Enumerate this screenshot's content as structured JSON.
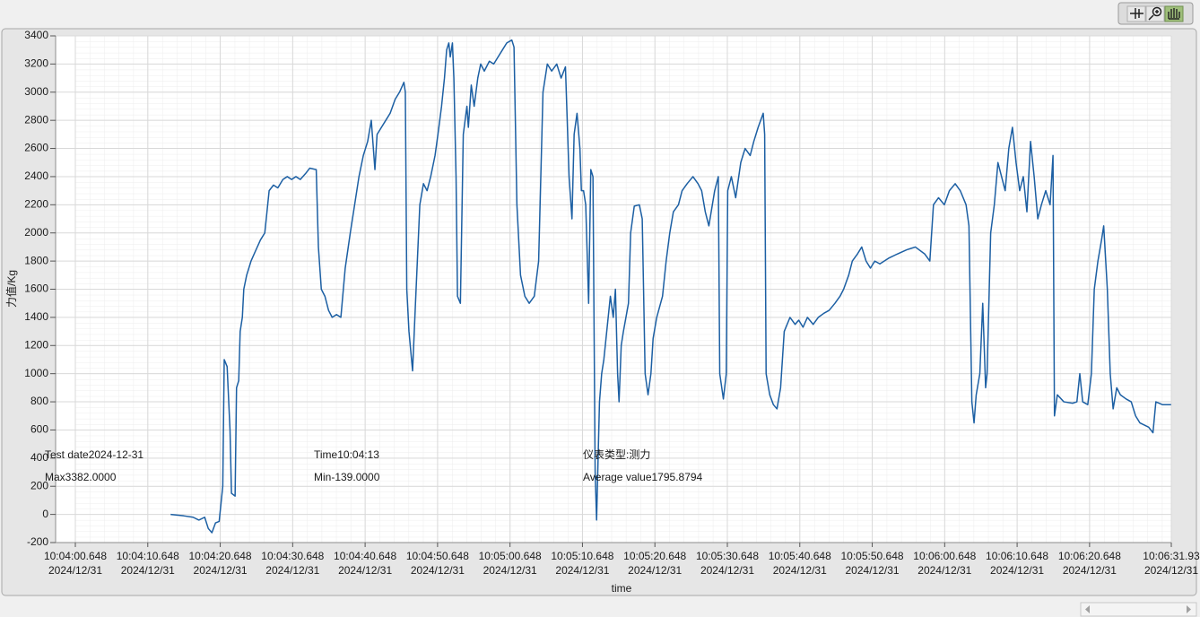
{
  "chart_data": {
    "type": "line",
    "x_label": "time",
    "y_label": "力值/Kg",
    "annotations": [
      "Test date2024-12-31",
      "Time10:04:13",
      "仪表类型:测力",
      "Max3382.0000",
      "Min-139.0000",
      "Average value1795.8794"
    ],
    "xlim": [
      "10:04:00.648",
      "10:06:31.93"
    ],
    "xticks": [
      {
        "value": "10:04:00.648",
        "label": "10:04:00.648\n2024/12/31"
      },
      {
        "value": "10:04:10.648",
        "label": "10:04:10.648\n2024/12/31"
      },
      {
        "value": "10:04:20.648",
        "label": "10:04:20.648\n2024/12/31"
      },
      {
        "value": "10:04:30.648",
        "label": "10:04:30.648\n2024/12/31"
      },
      {
        "value": "10:04:40.648",
        "label": "10:04:40.648\n2024/12/31"
      },
      {
        "value": "10:04:50.648",
        "label": "10:04:50.648\n2024/12/31"
      },
      {
        "value": "10:05:00.648",
        "label": "10:05:00.648\n2024/12/31"
      },
      {
        "value": "10:05:10.648",
        "label": "10:05:10.648\n2024/12/31"
      },
      {
        "value": "10:05:20.648",
        "label": "10:05:20.648\n2024/12/31"
      },
      {
        "value": "10:05:30.648",
        "label": "10:05:30.648\n2024/12/31"
      },
      {
        "value": "10:05:40.648",
        "label": "10:05:40.648\n2024/12/31"
      },
      {
        "value": "10:05:50.648",
        "label": "10:05:50.648\n2024/12/31"
      },
      {
        "value": "10:06:00.648",
        "label": "10:06:00.648\n2024/12/31"
      },
      {
        "value": "10:06:10.648",
        "label": "10:06:10.648\n2024/12/31"
      },
      {
        "value": "10:06:20.648",
        "label": "10:06:20.648\n2024/12/31"
      },
      {
        "value": "10:06:31.93",
        "label": "10:06:31.93\n2024/12/31"
      }
    ],
    "ylim": [
      -200,
      3400
    ],
    "yticks": [
      -200,
      0,
      200,
      400,
      600,
      800,
      1000,
      1200,
      1400,
      1600,
      1800,
      2000,
      2200,
      2400,
      2600,
      2800,
      3000,
      3200,
      3400
    ],
    "grid": true,
    "x": [
      "10:04:13.8",
      "10:04:15.6",
      "10:04:16.9",
      "10:04:17.7",
      "10:04:18.5",
      "10:04:19.0",
      "10:04:19.5",
      "10:04:20.0",
      "10:04:20.5",
      "10:04:21.0",
      "10:04:21.2",
      "10:04:21.6",
      "10:04:22.0",
      "10:04:22.2",
      "10:04:22.7",
      "10:04:22.9",
      "10:04:23.2",
      "10:04:23.4",
      "10:04:23.7",
      "10:04:23.9",
      "10:04:24.3",
      "10:04:24.9",
      "10:04:25.5",
      "10:04:26.2",
      "10:04:26.8",
      "10:04:27.4",
      "10:04:28.0",
      "10:04:28.6",
      "10:04:29.3",
      "10:04:29.9",
      "10:04:30.5",
      "10:04:31.1",
      "10:04:31.7",
      "10:04:32.4",
      "10:04:33.0",
      "10:04:33.9",
      "10:04:34.2",
      "10:04:34.6",
      "10:04:35.1",
      "10:04:35.6",
      "10:04:36.1",
      "10:04:36.7",
      "10:04:37.3",
      "10:04:37.9",
      "10:04:38.6",
      "10:04:39.2",
      "10:04:39.8",
      "10:04:40.4",
      "10:04:41.0",
      "10:04:41.5",
      "10:04:42.0",
      "10:04:42.3",
      "10:04:42.9",
      "10:04:43.5",
      "10:04:44.1",
      "10:04:44.8",
      "10:04:45.4",
      "10:04:46.0",
      "10:04:46.2",
      "10:04:46.4",
      "10:04:46.7",
      "10:04:47.2",
      "10:04:47.6",
      "10:04:48.2",
      "10:04:48.7",
      "10:04:49.2",
      "10:04:49.7",
      "10:04:50.3",
      "10:04:50.7",
      "10:04:51.2",
      "10:04:51.6",
      "10:04:51.9",
      "10:04:52.2",
      "10:04:52.4",
      "10:04:52.7",
      "10:04:52.9",
      "10:04:53.2",
      "10:04:53.4",
      "10:04:53.8",
      "10:04:54.2",
      "10:04:54.7",
      "10:04:54.9",
      "10:04:55.3",
      "10:04:55.7",
      "10:04:56.2",
      "10:04:56.6",
      "10:04:57.1",
      "10:04:57.8",
      "10:04:58.4",
      "10:04:59.0",
      "10:04:59.6",
      "10:05:00.2",
      "10:05:00.9",
      "10:05:01.2",
      "10:05:01.6",
      "10:05:02.1",
      "10:05:02.7",
      "10:05:03.3",
      "10:05:04.0",
      "10:05:04.6",
      "10:05:05.2",
      "10:05:05.8",
      "10:05:06.4",
      "10:05:07.1",
      "10:05:07.7",
      "10:05:08.3",
      "10:05:08.8",
      "10:05:09.2",
      "10:05:09.5",
      "10:05:09.9",
      "10:05:10.3",
      "10:05:10.5",
      "10:05:10.8",
      "10:05:11.1",
      "10:05:11.5",
      "10:05:11.8",
      "10:05:12.1",
      "10:05:12.4",
      "10:05:12.6",
      "10:05:13.0",
      "10:05:13.3",
      "10:05:13.6",
      "10:05:14.0",
      "10:05:14.5",
      "10:05:14.9",
      "10:05:15.2",
      "10:05:15.5",
      "10:05:15.7",
      "10:05:16.0",
      "10:05:16.3",
      "10:05:17.0",
      "10:05:17.3",
      "10:05:17.8",
      "10:05:18.5",
      "10:05:18.9",
      "10:05:19.3",
      "10:05:19.7",
      "10:05:20.1",
      "10:05:20.4",
      "10:05:20.9",
      "10:05:21.7",
      "10:05:22.2",
      "10:05:22.7",
      "10:05:23.2",
      "10:05:23.9",
      "10:05:24.4",
      "10:05:25.1",
      "10:05:25.9",
      "10:05:26.6",
      "10:05:27.1",
      "10:05:27.6",
      "10:05:28.1",
      "10:05:28.9",
      "10:05:29.4",
      "10:05:29.6",
      "10:05:30.1",
      "10:05:30.5",
      "10:05:30.7",
      "10:05:31.2",
      "10:05:31.8",
      "10:05:32.5",
      "10:05:33.1",
      "10:05:33.8",
      "10:05:34.3",
      "10:05:34.9",
      "10:05:35.6",
      "10:05:35.8",
      "10:05:36.0",
      "10:05:36.5",
      "10:05:37.0",
      "10:05:37.5",
      "10:05:38.0",
      "10:05:38.5",
      "10:05:39.3",
      "10:05:40.0",
      "10:05:40.5",
      "10:05:41.1",
      "10:05:41.7",
      "10:05:42.5",
      "10:05:43.2",
      "10:05:44.0",
      "10:05:44.7",
      "10:05:45.5",
      "10:05:46.2",
      "10:05:46.7",
      "10:05:47.4",
      "10:05:47.9",
      "10:05:48.6",
      "10:05:49.2",
      "10:05:49.8",
      "10:05:50.4",
      "10:05:51.0",
      "10:05:51.7",
      "10:05:52.9",
      "10:05:54.1",
      "10:05:55.4",
      "10:05:56.6",
      "10:05:57.9",
      "10:05:58.6",
      "10:05:59.1",
      "10:05:59.8",
      "10:06:00.6",
      "10:06:01.3",
      "10:06:02.1",
      "10:06:02.8",
      "10:06:03.6",
      "10:06:04.0",
      "10:06:04.4",
      "10:06:04.7",
      "10:06:05.0",
      "10:06:05.5",
      "10:06:05.9",
      "10:06:06.3",
      "10:06:06.5",
      "10:06:07.0",
      "10:06:07.5",
      "10:06:08.0",
      "10:06:08.5",
      "10:06:09.0",
      "10:06:09.5",
      "10:06:10.0",
      "10:06:10.5",
      "10:06:11.0",
      "10:06:11.5",
      "10:06:12.0",
      "10:06:12.5",
      "10:06:13.0",
      "10:06:13.5",
      "10:06:14.0",
      "10:06:14.6",
      "10:06:15.2",
      "10:06:15.6",
      "10:06:15.8",
      "10:06:16.2",
      "10:06:17.1",
      "10:06:18.3",
      "10:06:18.9",
      "10:06:19.3",
      "10:06:19.7",
      "10:06:20.4",
      "10:06:20.9",
      "10:06:21.3",
      "10:06:21.8",
      "10:06:22.3",
      "10:06:22.6",
      "10:06:23.1",
      "10:06:23.5",
      "10:06:23.9",
      "10:06:24.4",
      "10:06:24.9",
      "10:06:25.7",
      "10:06:26.4",
      "10:06:27.0",
      "10:06:27.6",
      "10:06:28.8",
      "10:06:29.4",
      "10:06:29.8",
      "10:06:30.7",
      "10:06:31.9"
    ],
    "series": [
      {
        "color": "#1c5fa3",
        "values": [
          0,
          -10,
          -20,
          -40,
          -20,
          -100,
          -130,
          -60,
          -50,
          200,
          1100,
          1050,
          600,
          150,
          130,
          900,
          950,
          1300,
          1400,
          1600,
          1700,
          1800,
          1870,
          1950,
          2000,
          2300,
          2340,
          2320,
          2380,
          2400,
          2380,
          2400,
          2380,
          2420,
          2460,
          2450,
          1900,
          1600,
          1550,
          1450,
          1400,
          1420,
          1400,
          1750,
          2000,
          2200,
          2400,
          2550,
          2650,
          2800,
          2450,
          2700,
          2750,
          2800,
          2850,
          2950,
          3000,
          3070,
          3000,
          1600,
          1300,
          1020,
          1500,
          2200,
          2350,
          2300,
          2400,
          2550,
          2700,
          2900,
          3100,
          3300,
          3350,
          3250,
          3350,
          3100,
          2400,
          1550,
          1500,
          2700,
          2900,
          2750,
          3050,
          2900,
          3100,
          3200,
          3150,
          3220,
          3200,
          3250,
          3300,
          3350,
          3370,
          3320,
          2200,
          1700,
          1550,
          1500,
          1550,
          1800,
          3000,
          3200,
          3150,
          3200,
          3100,
          3180,
          2400,
          2100,
          2700,
          2850,
          2600,
          2300,
          2300,
          2200,
          1500,
          2450,
          2400,
          300,
          -40,
          800,
          1000,
          1100,
          1300,
          1550,
          1400,
          1600,
          1000,
          800,
          1200,
          1300,
          1500,
          2000,
          2190,
          2200,
          2100,
          1000,
          850,
          1000,
          1250,
          1400,
          1550,
          1800,
          2000,
          2150,
          2200,
          2300,
          2350,
          2400,
          2350,
          2300,
          2150,
          2050,
          2300,
          2400,
          1000,
          820,
          1000,
          2300,
          2400,
          2250,
          2500,
          2600,
          2550,
          2650,
          2750,
          2850,
          2700,
          1000,
          850,
          780,
          750,
          900,
          1300,
          1400,
          1350,
          1380,
          1330,
          1400,
          1350,
          1400,
          1430,
          1450,
          1500,
          1550,
          1600,
          1700,
          1800,
          1850,
          1900,
          1800,
          1750,
          1800,
          1780,
          1820,
          1850,
          1880,
          1900,
          1850,
          1800,
          2200,
          2250,
          2200,
          2300,
          2350,
          2300,
          2200,
          2050,
          800,
          650,
          850,
          1000,
          1500,
          900,
          1000,
          2000,
          2200,
          2500,
          2400,
          2300,
          2600,
          2750,
          2500,
          2300,
          2400,
          2150,
          2650,
          2400,
          2100,
          2200,
          2300,
          2200,
          2550,
          700,
          850,
          800,
          790,
          800,
          1000,
          800,
          780,
          1000,
          1600,
          1800,
          1950,
          2050,
          1600,
          1000,
          750,
          900,
          850,
          820,
          800,
          700,
          650,
          620,
          580,
          800,
          780,
          780
        ]
      }
    ]
  }
}
